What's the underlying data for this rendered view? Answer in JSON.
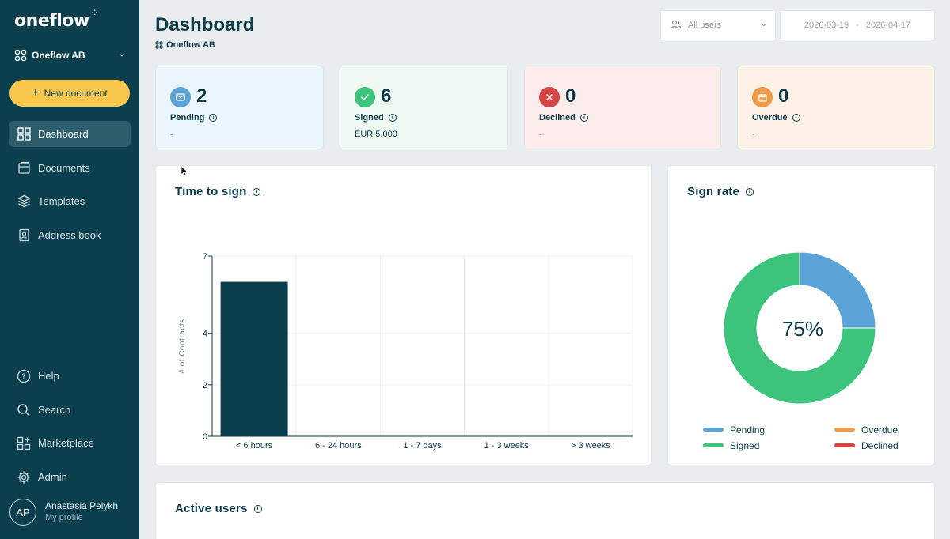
{
  "sidebar": {
    "logo": "oneflow",
    "org": "Oneflow AB",
    "new_document": "New document",
    "nav": [
      {
        "label": "Dashboard",
        "icon": "dashboard-icon",
        "active": true
      },
      {
        "label": "Documents",
        "icon": "documents-icon"
      },
      {
        "label": "Templates",
        "icon": "templates-icon"
      },
      {
        "label": "Address book",
        "icon": "address-book-icon"
      }
    ],
    "bottom_nav": [
      {
        "label": "Help",
        "icon": "help-icon"
      },
      {
        "label": "Search",
        "icon": "search-icon"
      },
      {
        "label": "Marketplace",
        "icon": "marketplace-icon"
      },
      {
        "label": "Admin",
        "icon": "gear-icon"
      }
    ],
    "profile": {
      "initials": "AP",
      "name": "Anastasia Pelykh",
      "sub": "My profile"
    }
  },
  "header": {
    "title": "Dashboard",
    "subtitle": "Oneflow AB",
    "users_filter": "All users",
    "date_from": "2026-03-19",
    "date_sep": "-",
    "date_to": "2026-04-17"
  },
  "stats": [
    {
      "label": "Pending",
      "value": "2",
      "sub": "-",
      "color": "#5aa3d8",
      "bg": "#eaf5fd"
    },
    {
      "label": "Signed",
      "value": "6",
      "sub": "EUR 5,000",
      "color": "#3cc47c",
      "bg": "#edf9f1"
    },
    {
      "label": "Declined",
      "value": "0",
      "sub": "-",
      "color": "#d64545",
      "bg": "#fdecec"
    },
    {
      "label": "Overdue",
      "value": "0",
      "sub": "-",
      "color": "#ee9a48",
      "bg": "#fdf0e4"
    }
  ],
  "time_to_sign": {
    "title": "Time to sign"
  },
  "sign_rate": {
    "title": "Sign rate",
    "center": "75%",
    "legend": [
      {
        "label": "Pending",
        "color": "#5aa3d8"
      },
      {
        "label": "Overdue",
        "color": "#ee9a48"
      },
      {
        "label": "Signed",
        "color": "#3cc47c"
      },
      {
        "label": "Declined",
        "color": "#d64545"
      }
    ]
  },
  "active_users": {
    "title": "Active users"
  },
  "chart_data": [
    {
      "type": "bar",
      "title": "Time to sign",
      "ylabel": "# of Contracts",
      "xlabel": "",
      "categories": [
        "< 6 hours",
        "6 - 24 hours",
        "1 - 7 days",
        "1 - 3 weeks",
        "> 3 weeks"
      ],
      "values": [
        6,
        0,
        0,
        0,
        0
      ],
      "yticks": [
        0,
        2,
        4,
        7
      ],
      "ylim": [
        0,
        7
      ],
      "grid": true,
      "color": "#0c3f4e"
    },
    {
      "type": "pie",
      "title": "Sign rate",
      "categories": [
        "Pending",
        "Signed",
        "Overdue",
        "Declined"
      ],
      "values": [
        2,
        6,
        0,
        0
      ],
      "colors": [
        "#5aa3d8",
        "#3cc47c",
        "#ee9a48",
        "#d64545"
      ],
      "center_label": "75%",
      "legend": "bottom"
    }
  ]
}
